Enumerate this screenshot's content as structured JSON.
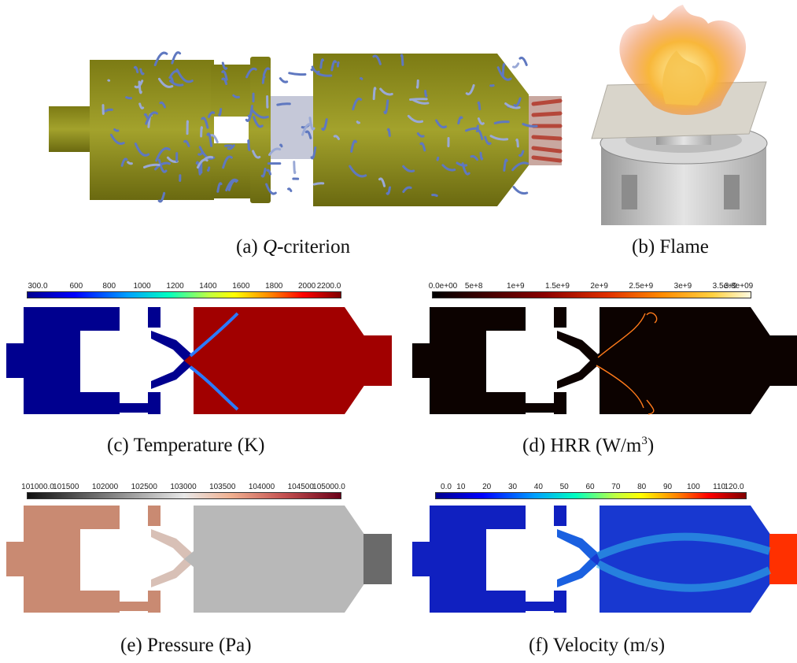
{
  "panels": [
    {
      "id": "a",
      "letter": "(a)",
      "italic": "Q",
      "rest": "-criterion"
    },
    {
      "id": "b",
      "letter": "(b)",
      "italic": "",
      "rest": "Flame"
    },
    {
      "id": "c",
      "letter": "(c)",
      "italic": "",
      "rest": "Temperature (K)"
    },
    {
      "id": "d",
      "letter": "(d)",
      "italic": "",
      "rest": "HRR (W/m",
      "sup": "3",
      "tail": ")"
    },
    {
      "id": "e",
      "letter": "(e)",
      "italic": "",
      "rest": "Pressure (Pa)"
    },
    {
      "id": "f",
      "letter": "(f)",
      "italic": "",
      "rest": "Velocity (m/s)"
    }
  ],
  "colorbars": {
    "temperature": {
      "ticks": [
        "300.0",
        "600",
        "800",
        "1000",
        "1200",
        "1400",
        "1600",
        "1800",
        "2000",
        "2200.0"
      ],
      "values": [
        300,
        600,
        800,
        1000,
        1200,
        1400,
        1600,
        1800,
        2000,
        2200
      ],
      "min": 300,
      "max": 2200
    },
    "hrr": {
      "ticks": [
        "0.0e+00",
        "5e+8",
        "1e+9",
        "1.5e+9",
        "2e+9",
        "2.5e+9",
        "3e+9",
        "3.5e+9",
        "3.8e+09"
      ],
      "values": [
        0,
        0.5,
        1,
        1.5,
        2,
        2.5,
        3,
        3.5,
        3.8
      ],
      "min": 0,
      "max": 3.8
    },
    "pressure": {
      "ticks": [
        "101000.0",
        "101500",
        "102000",
        "102500",
        "103000",
        "103500",
        "104000",
        "104500",
        "105000.0"
      ],
      "values": [
        101000,
        101500,
        102000,
        102500,
        103000,
        103500,
        104000,
        104500,
        105000
      ],
      "min": 101000,
      "max": 105000
    },
    "velocity": {
      "ticks": [
        "0.0",
        "10",
        "20",
        "30",
        "40",
        "50",
        "60",
        "70",
        "80",
        "90",
        "100",
        "110",
        "120.0"
      ],
      "values": [
        0,
        10,
        20,
        30,
        40,
        50,
        60,
        70,
        80,
        90,
        100,
        110,
        120
      ],
      "min": 0,
      "max": 120
    }
  },
  "colors": {
    "combustor_olive": "#8f8e1e",
    "vortex_blue": "#6f86c8",
    "temp_cold": "#00008f",
    "temp_hot": "#a10000",
    "hrr_dark": "#0c0200",
    "pressure_warm": "#c98a72",
    "pressure_gray": "#b8b8b8",
    "velocity_low": "#1020c0"
  }
}
